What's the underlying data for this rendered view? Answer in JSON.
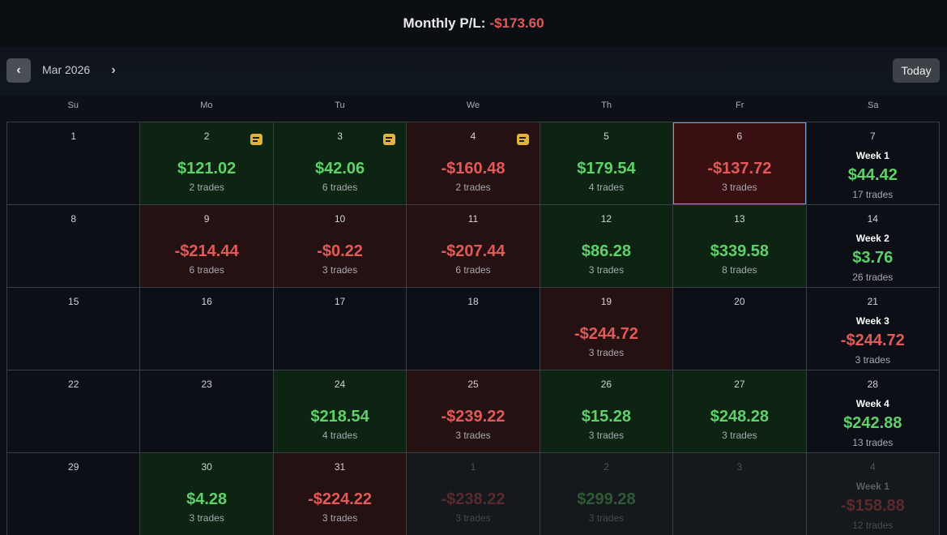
{
  "header": {
    "label": "Monthly P/L:",
    "value": "-$173.60"
  },
  "toolbar": {
    "prev": "‹",
    "month": "Mar 2026",
    "next": "›",
    "today": "Today"
  },
  "weekdays": [
    "Su",
    "Mo",
    "Tu",
    "We",
    "Th",
    "Fr",
    "Sa"
  ],
  "colors": {
    "positive": "#5fd06a",
    "negative": "#e05a5a",
    "note": "#e2b23a",
    "selected_border": "#6f9fd6"
  },
  "days": [
    {
      "day": "1"
    },
    {
      "day": "2",
      "pnl": "$121.02",
      "trades": "2 trades",
      "note": true
    },
    {
      "day": "3",
      "pnl": "$42.06",
      "trades": "6 trades",
      "note": true
    },
    {
      "day": "4",
      "pnl": "-$160.48",
      "trades": "2 trades",
      "note": true
    },
    {
      "day": "5",
      "pnl": "$179.54",
      "trades": "4 trades"
    },
    {
      "day": "6",
      "pnl": "-$137.72",
      "trades": "3 trades",
      "selected": true
    },
    {
      "day": "7",
      "week": "Week 1",
      "pnl": "$44.42",
      "trades": "17 trades"
    },
    {
      "day": "8"
    },
    {
      "day": "9",
      "pnl": "-$214.44",
      "trades": "6 trades"
    },
    {
      "day": "10",
      "pnl": "-$0.22",
      "trades": "3 trades"
    },
    {
      "day": "11",
      "pnl": "-$207.44",
      "trades": "6 trades"
    },
    {
      "day": "12",
      "pnl": "$86.28",
      "trades": "3 trades"
    },
    {
      "day": "13",
      "pnl": "$339.58",
      "trades": "8 trades"
    },
    {
      "day": "14",
      "week": "Week 2",
      "pnl": "$3.76",
      "trades": "26 trades"
    },
    {
      "day": "15"
    },
    {
      "day": "16"
    },
    {
      "day": "17"
    },
    {
      "day": "18"
    },
    {
      "day": "19",
      "pnl": "-$244.72",
      "trades": "3 trades"
    },
    {
      "day": "20"
    },
    {
      "day": "21",
      "week": "Week 3",
      "pnl": "-$244.72",
      "trades": "3 trades"
    },
    {
      "day": "22"
    },
    {
      "day": "23"
    },
    {
      "day": "24",
      "pnl": "$218.54",
      "trades": "4 trades"
    },
    {
      "day": "25",
      "pnl": "-$239.22",
      "trades": "3 trades"
    },
    {
      "day": "26",
      "pnl": "$15.28",
      "trades": "3 trades"
    },
    {
      "day": "27",
      "pnl": "$248.28",
      "trades": "3 trades"
    },
    {
      "day": "28",
      "week": "Week 4",
      "pnl": "$242.88",
      "trades": "13 trades"
    },
    {
      "day": "29"
    },
    {
      "day": "30",
      "pnl": "$4.28",
      "trades": "3 trades"
    },
    {
      "day": "31",
      "pnl": "-$224.22",
      "trades": "3 trades"
    },
    {
      "day": "1",
      "pnl": "-$238.22",
      "trades": "3 trades",
      "out": true
    },
    {
      "day": "2",
      "pnl": "$299.28",
      "trades": "3 trades",
      "out": true
    },
    {
      "day": "3",
      "out": true
    },
    {
      "day": "4",
      "week": "Week 1",
      "pnl": "-$158.88",
      "trades": "12 trades",
      "out": true
    }
  ]
}
